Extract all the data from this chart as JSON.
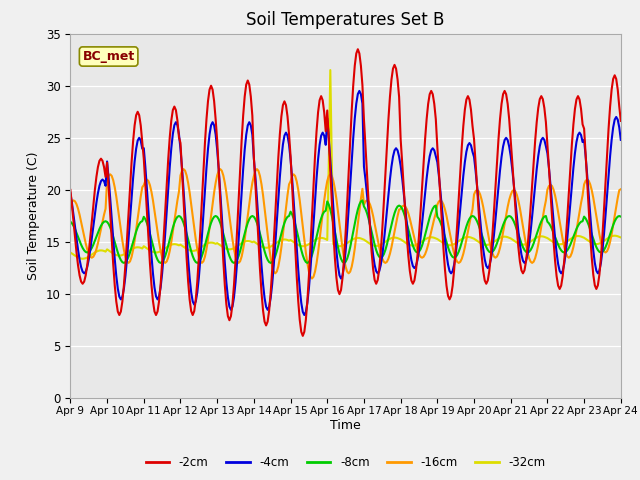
{
  "title": "Soil Temperatures Set B",
  "xlabel": "Time",
  "ylabel": "Soil Temperature (C)",
  "annotation": "BC_met",
  "ylim": [
    0,
    35
  ],
  "xlim": [
    0,
    360
  ],
  "fig_bg_color": "#f0f0f0",
  "plot_bg_color": "#e8e8e8",
  "colors": {
    "-2cm": "#dd0000",
    "-4cm": "#0000dd",
    "-8cm": "#00cc00",
    "-16cm": "#ff9900",
    "-32cm": "#dddd00"
  },
  "linewidths": {
    "-2cm": 1.5,
    "-4cm": 1.5,
    "-8cm": 1.5,
    "-16cm": 1.5,
    "-32cm": 1.5
  },
  "x_tick_labels": [
    "Apr 9",
    "Apr 10",
    "Apr 11",
    "Apr 12",
    "Apr 13",
    "Apr 14",
    "Apr 15",
    "Apr 16",
    "Apr 17",
    "Apr 18",
    "Apr 19",
    "Apr 20",
    "Apr 21",
    "Apr 22",
    "Apr 23",
    "Apr 24"
  ],
  "x_tick_positions": [
    0,
    24,
    48,
    72,
    96,
    120,
    144,
    168,
    192,
    216,
    240,
    264,
    288,
    312,
    336,
    360
  ],
  "y_ticks": [
    0,
    5,
    10,
    15,
    20,
    25,
    30,
    35
  ],
  "legend_labels": [
    "-2cm",
    "-4cm",
    "-8cm",
    "-16cm",
    "-32cm"
  ]
}
